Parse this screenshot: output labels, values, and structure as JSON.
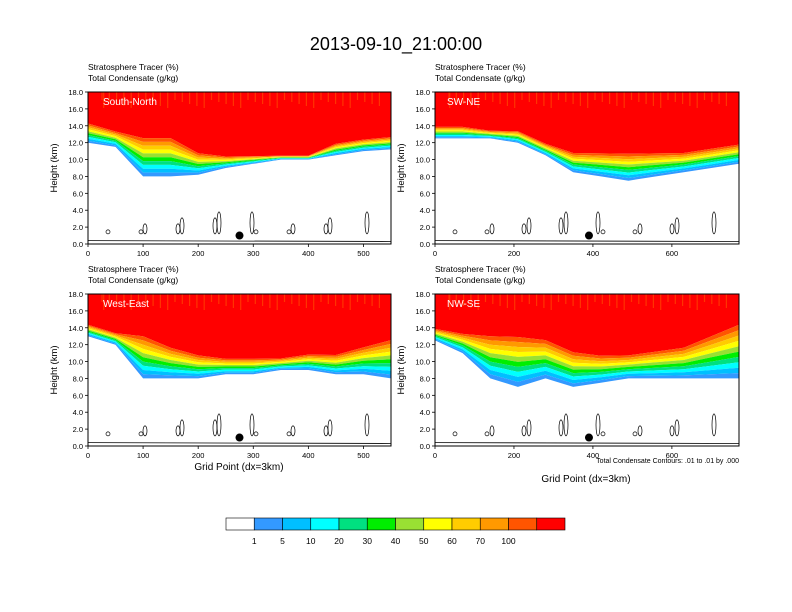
{
  "figure": {
    "title": "2013-09-10_21:00:00",
    "footnote": "Total Condensate Contours: .01 to .01 by .000"
  },
  "colorbar": {
    "levels": [
      "1",
      "5",
      "10",
      "20",
      "30",
      "40",
      "50",
      "60",
      "70",
      "100"
    ],
    "colors": [
      "#ffffff",
      "#3399ff",
      "#00bfff",
      "#00ffff",
      "#00e080",
      "#00ee00",
      "#99e033",
      "#ffff00",
      "#ffcc00",
      "#ff9900",
      "#ff5500",
      "#ff0000"
    ]
  },
  "chart_data": [
    {
      "type": "heatmap",
      "panel": "South-North",
      "subtitle_1": "Stratosphere Tracer   (%)",
      "subtitle_2": "Total Condensate   (g/kg)",
      "ylabel": "Height (km)",
      "xlabel": "",
      "x_ticks": [
        "0",
        "100",
        "200",
        "300",
        "400",
        "500"
      ],
      "y_ticks": [
        "0.0",
        "2.0",
        "4.0",
        "6.0",
        "8.0",
        "10.0",
        "12.0",
        "14.0",
        "16.0",
        "18.0"
      ],
      "xlim": [
        0,
        550
      ],
      "ylim": [
        0,
        18
      ],
      "profile_x": [
        0,
        50,
        100,
        150,
        200,
        250,
        300,
        350,
        400,
        450,
        500,
        550
      ],
      "tropopause_km": [
        14.5,
        13.5,
        13.0,
        13.0,
        11.0,
        10.5,
        10.5,
        10.5,
        10.5,
        12.0,
        12.5,
        12.8
      ],
      "tracer_base_km": [
        12.0,
        11.5,
        8.0,
        8.0,
        8.2,
        9.0,
        9.5,
        10.0,
        10.0,
        10.5,
        11.0,
        11.2
      ],
      "marker": {
        "x": 275,
        "y": 1.0
      }
    },
    {
      "type": "heatmap",
      "panel": "SW-NE",
      "subtitle_1": "Stratosphere Tracer   (%)",
      "subtitle_2": "Total Condensate   (g/kg)",
      "ylabel": "Height (km)",
      "xlabel": "",
      "x_ticks": [
        "0",
        "200",
        "400",
        "600"
      ],
      "y_ticks": [
        "0.0",
        "2.0",
        "4.0",
        "6.0",
        "8.0",
        "10.0",
        "12.0",
        "14.0",
        "16.0",
        "18.0"
      ],
      "xlim": [
        0,
        770
      ],
      "ylim": [
        0,
        18
      ],
      "profile_x": [
        0,
        70,
        140,
        210,
        280,
        350,
        420,
        490,
        560,
        630,
        700,
        770
      ],
      "tropopause_km": [
        14.0,
        14.0,
        13.5,
        13.5,
        12.0,
        11.0,
        11.0,
        11.0,
        11.0,
        11.0,
        11.5,
        12.0
      ],
      "tracer_base_km": [
        12.5,
        12.5,
        12.5,
        12.0,
        10.5,
        8.5,
        8.0,
        7.5,
        8.0,
        8.5,
        9.0,
        9.5
      ],
      "marker": {
        "x": 390,
        "y": 1.0
      }
    },
    {
      "type": "heatmap",
      "panel": "West-East",
      "subtitle_1": "Stratosphere Tracer   (%)",
      "subtitle_2": "Total Condensate   (g/kg)",
      "ylabel": "Height (km)",
      "xlabel": "Grid Point (dx=3km)",
      "x_ticks": [
        "0",
        "100",
        "200",
        "300",
        "400",
        "500"
      ],
      "y_ticks": [
        "0.0",
        "2.0",
        "4.0",
        "6.0",
        "8.0",
        "10.0",
        "12.0",
        "14.0",
        "16.0",
        "18.0"
      ],
      "xlim": [
        0,
        550
      ],
      "ylim": [
        0,
        18
      ],
      "profile_x": [
        0,
        50,
        100,
        150,
        200,
        250,
        300,
        350,
        400,
        450,
        500,
        550
      ],
      "tropopause_km": [
        14.5,
        13.5,
        13.5,
        12.0,
        11.0,
        10.5,
        10.5,
        10.5,
        11.0,
        11.0,
        12.0,
        13.0
      ],
      "tracer_base_km": [
        13.0,
        12.0,
        8.0,
        8.0,
        8.0,
        8.5,
        8.5,
        9.0,
        9.0,
        8.5,
        8.5,
        8.0
      ],
      "marker": {
        "x": 275,
        "y": 1.0
      }
    },
    {
      "type": "heatmap",
      "panel": "NW-SE",
      "subtitle_1": "Stratosphere Tracer   (%)",
      "subtitle_2": "Total Condensate   (g/kg)",
      "ylabel": "Height (km)",
      "xlabel": "Grid Point (dx=3km)",
      "x_ticks": [
        "0",
        "200",
        "400",
        "600"
      ],
      "y_ticks": [
        "0.0",
        "2.0",
        "4.0",
        "6.0",
        "8.0",
        "10.0",
        "12.0",
        "14.0",
        "16.0",
        "18.0"
      ],
      "xlim": [
        0,
        770
      ],
      "ylim": [
        0,
        18
      ],
      "profile_x": [
        0,
        70,
        140,
        210,
        280,
        350,
        420,
        490,
        560,
        630,
        700,
        770
      ],
      "tropopause_km": [
        14.0,
        13.5,
        13.5,
        13.5,
        13.0,
        11.5,
        11.0,
        11.0,
        11.5,
        12.0,
        13.5,
        15.0
      ],
      "tracer_base_km": [
        12.5,
        11.0,
        8.0,
        7.0,
        8.0,
        7.0,
        7.5,
        8.0,
        8.0,
        8.0,
        8.0,
        8.0
      ],
      "marker": {
        "x": 390,
        "y": 1.0
      }
    }
  ]
}
